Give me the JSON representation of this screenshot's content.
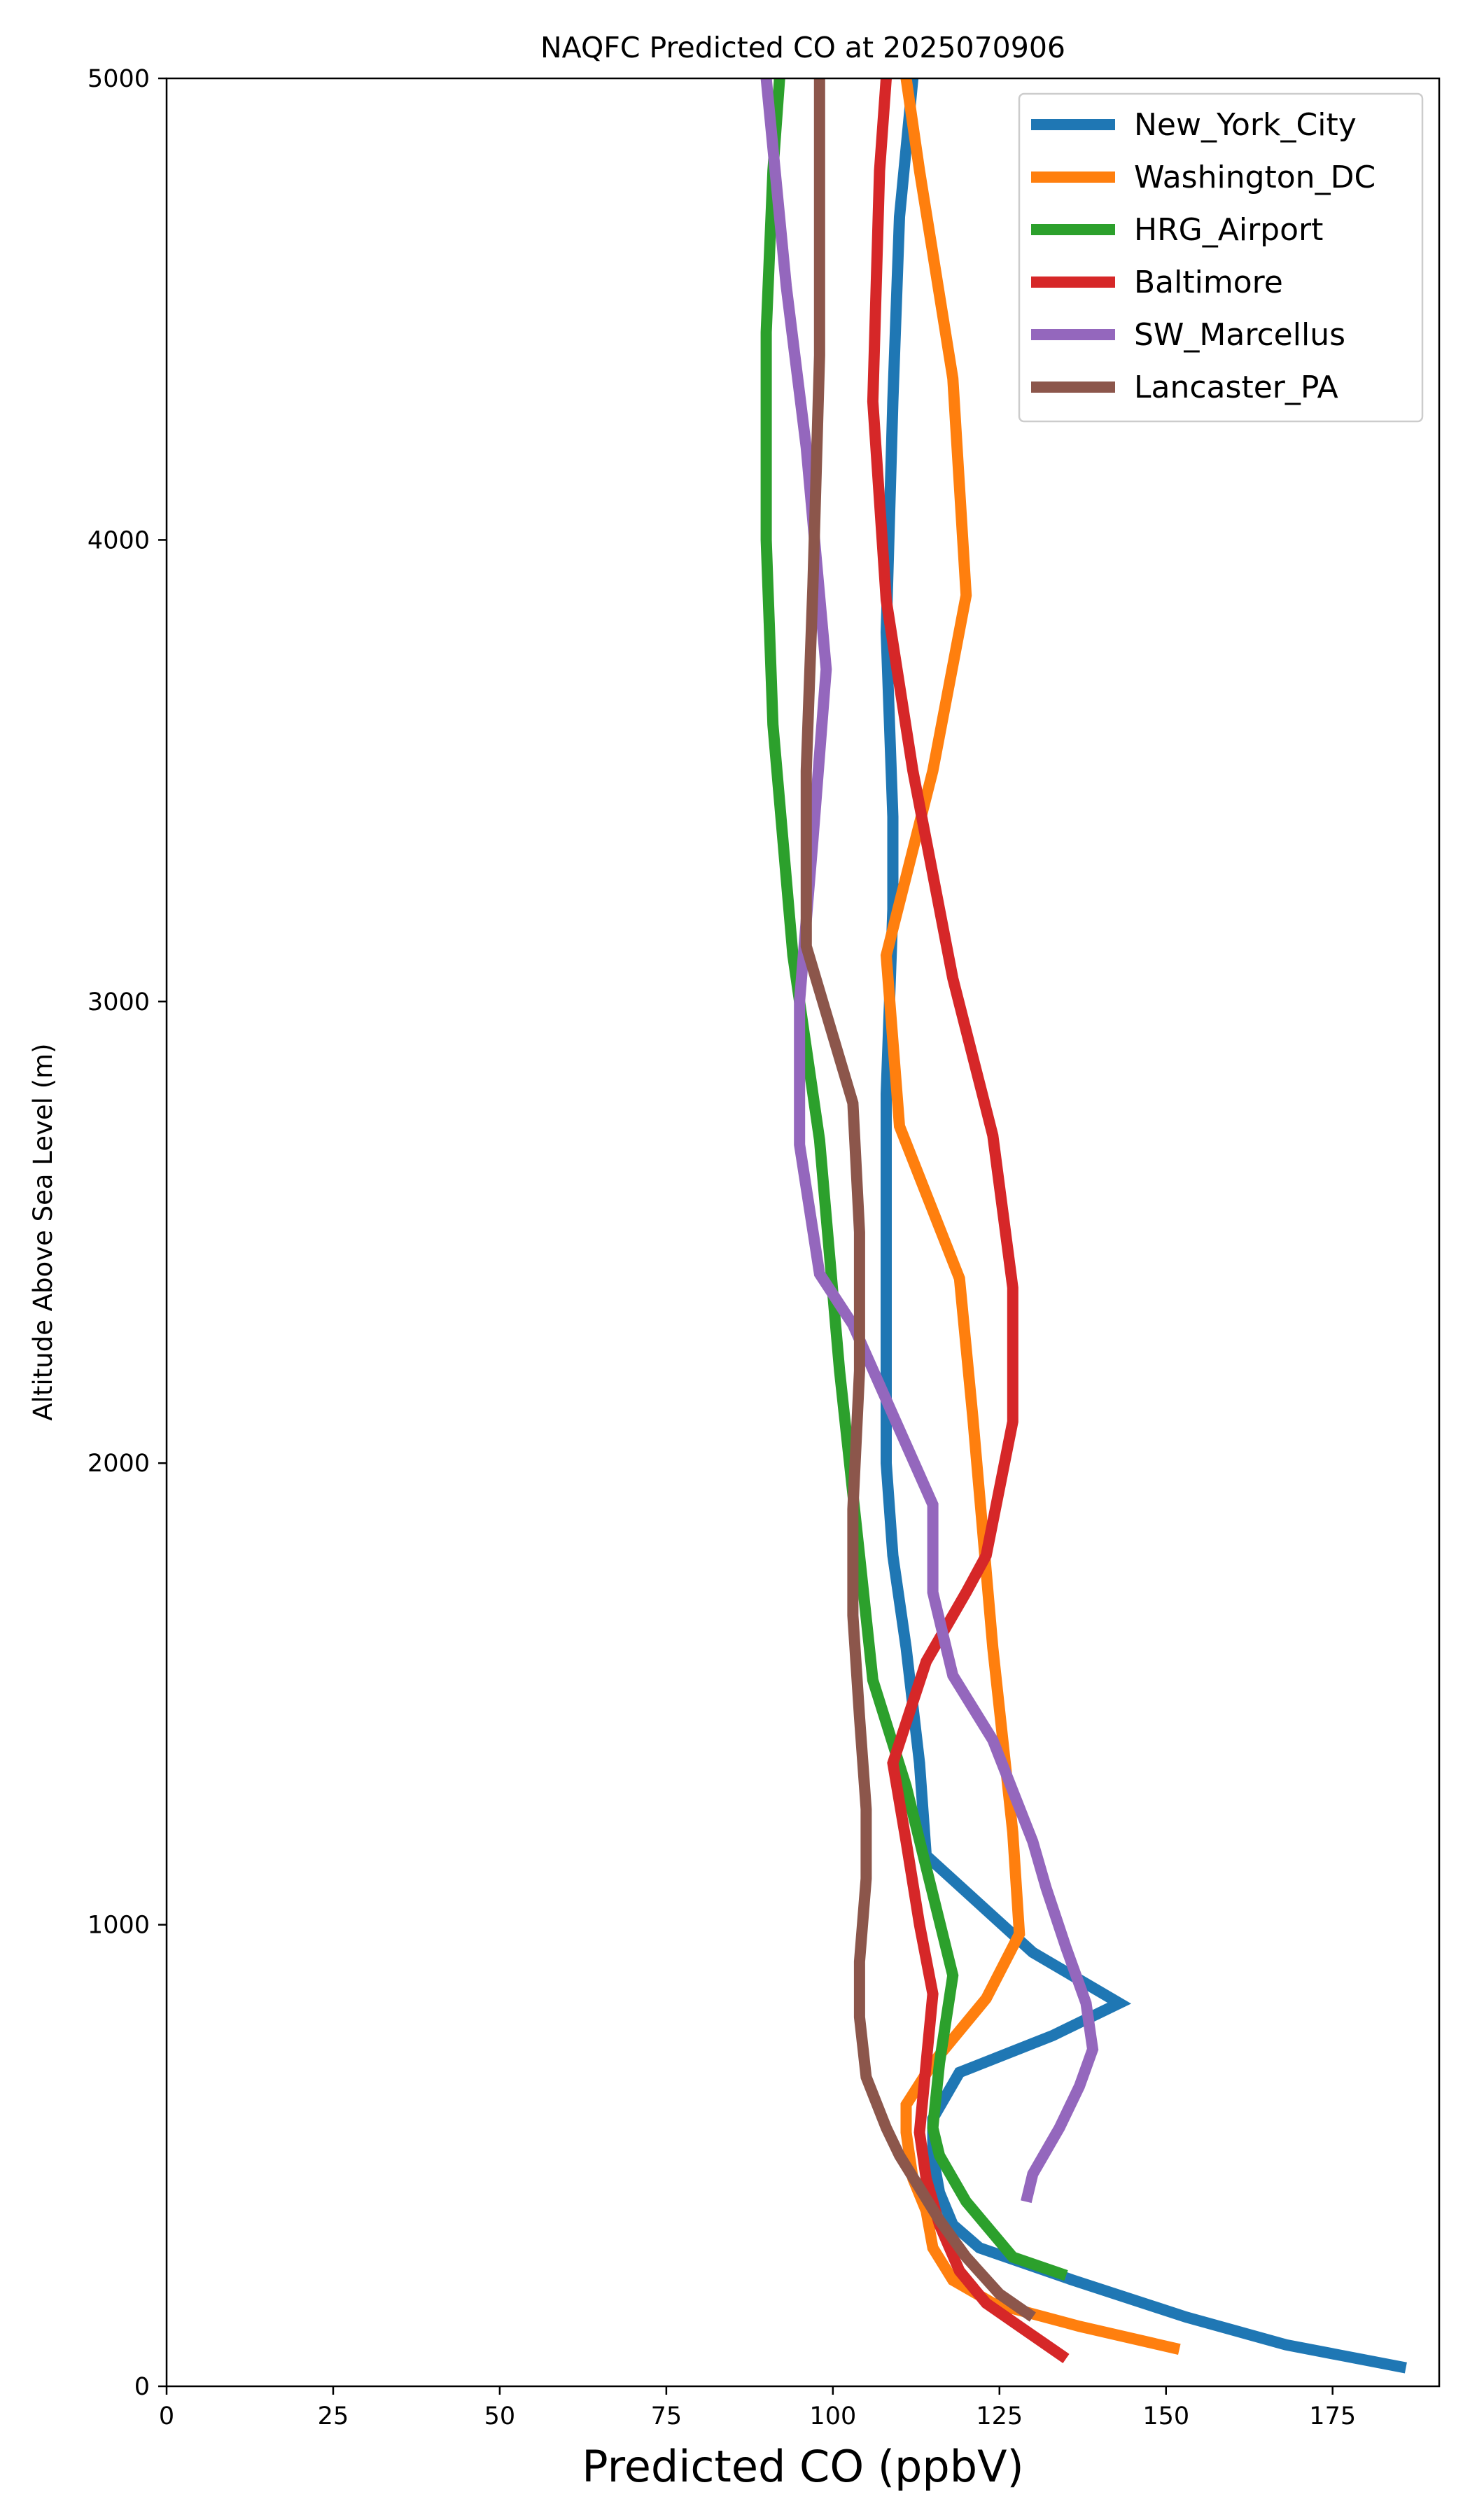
{
  "chart_data": {
    "type": "line",
    "title": "NAQFC Predicted CO at 2025070906",
    "xlabel": "Predicted CO (ppbV)",
    "ylabel": "Altitude Above Sea Level (m)",
    "xlim": [
      0,
      191
    ],
    "ylim": [
      0,
      5000
    ],
    "xticks": [
      "0",
      "25",
      "50",
      "75",
      "100",
      "125",
      "150",
      "175"
    ],
    "yticks": [
      "0",
      "1000",
      "2000",
      "3000",
      "4000",
      "5000"
    ],
    "grid": false,
    "legend_position": "top-right",
    "series": [
      {
        "name": "New_York_City",
        "color": "#1f77b4",
        "points": [
          [
            186,
            40
          ],
          [
            168,
            90
          ],
          [
            153,
            150
          ],
          [
            136,
            230
          ],
          [
            122,
            300
          ],
          [
            118,
            350
          ],
          [
            116,
            420
          ],
          [
            115,
            500
          ],
          [
            115,
            580
          ],
          [
            119,
            680
          ],
          [
            133,
            760
          ],
          [
            143,
            830
          ],
          [
            130,
            940
          ],
          [
            114,
            1150
          ],
          [
            113,
            1350
          ],
          [
            111,
            1600
          ],
          [
            109,
            1800
          ],
          [
            108,
            2000
          ],
          [
            108,
            2400
          ],
          [
            108,
            2800
          ],
          [
            109,
            3200
          ],
          [
            109,
            3400
          ],
          [
            108,
            3800
          ],
          [
            109,
            4300
          ],
          [
            110,
            4700
          ],
          [
            112,
            5000
          ]
        ]
      },
      {
        "name": "Washington_DC",
        "color": "#ff7f0e",
        "points": [
          [
            152,
            80
          ],
          [
            137,
            130
          ],
          [
            124,
            180
          ],
          [
            118,
            230
          ],
          [
            115,
            300
          ],
          [
            114,
            380
          ],
          [
            112,
            450
          ],
          [
            111,
            550
          ],
          [
            111,
            610
          ],
          [
            115,
            700
          ],
          [
            123,
            840
          ],
          [
            128,
            980
          ],
          [
            127,
            1200
          ],
          [
            124,
            1600
          ],
          [
            121,
            2100
          ],
          [
            119,
            2400
          ],
          [
            110,
            2730
          ],
          [
            108,
            3100
          ],
          [
            115,
            3500
          ],
          [
            120,
            3880
          ],
          [
            118,
            4350
          ],
          [
            113,
            4800
          ],
          [
            111,
            5000
          ]
        ]
      },
      {
        "name": "HRG_Airport",
        "color": "#2ca02c",
        "points": [
          [
            135,
            240
          ],
          [
            127,
            280
          ],
          [
            120,
            400
          ],
          [
            116,
            500
          ],
          [
            115,
            560
          ],
          [
            116,
            700
          ],
          [
            118,
            890
          ],
          [
            111,
            1300
          ],
          [
            106,
            1530
          ],
          [
            104,
            1800
          ],
          [
            101,
            2200
          ],
          [
            98,
            2700
          ],
          [
            94,
            3100
          ],
          [
            91,
            3600
          ],
          [
            90,
            4000
          ],
          [
            90,
            4450
          ],
          [
            91,
            4800
          ],
          [
            92,
            5000
          ]
        ]
      },
      {
        "name": "Baltimore",
        "color": "#d62728",
        "points": [
          [
            135,
            60
          ],
          [
            129,
            120
          ],
          [
            123,
            180
          ],
          [
            119,
            250
          ],
          [
            116,
            350
          ],
          [
            114,
            450
          ],
          [
            113,
            550
          ],
          [
            114,
            700
          ],
          [
            115,
            850
          ],
          [
            113,
            1000
          ],
          [
            111,
            1180
          ],
          [
            109,
            1350
          ],
          [
            114,
            1570
          ],
          [
            120,
            1720
          ],
          [
            123,
            1800
          ],
          [
            127,
            2090
          ],
          [
            127,
            2380
          ],
          [
            124,
            2710
          ],
          [
            118,
            3050
          ],
          [
            112,
            3500
          ],
          [
            108,
            3870
          ],
          [
            106,
            4300
          ],
          [
            107,
            4800
          ],
          [
            108,
            5000
          ]
        ]
      },
      {
        "name": "SW_Marcellus",
        "color": "#9467bd",
        "points": [
          [
            129,
            400
          ],
          [
            130,
            460
          ],
          [
            134,
            560
          ],
          [
            137,
            650
          ],
          [
            139,
            730
          ],
          [
            138,
            830
          ],
          [
            135,
            950
          ],
          [
            132,
            1080
          ],
          [
            130,
            1180
          ],
          [
            124,
            1400
          ],
          [
            118,
            1540
          ],
          [
            115,
            1720
          ],
          [
            115,
            1910
          ],
          [
            103,
            2300
          ],
          [
            98,
            2410
          ],
          [
            95,
            2690
          ],
          [
            95,
            3000
          ],
          [
            97,
            3350
          ],
          [
            99,
            3720
          ],
          [
            96,
            4200
          ],
          [
            93,
            4550
          ],
          [
            90,
            5000
          ]
        ]
      },
      {
        "name": "Lancaster_PA",
        "color": "#8c564b",
        "points": [
          [
            130,
            150
          ],
          [
            125,
            200
          ],
          [
            120,
            280
          ],
          [
            116,
            360
          ],
          [
            113,
            430
          ],
          [
            110,
            500
          ],
          [
            108,
            560
          ],
          [
            105,
            670
          ],
          [
            104,
            800
          ],
          [
            104,
            920
          ],
          [
            105,
            1100
          ],
          [
            105,
            1250
          ],
          [
            104,
            1450
          ],
          [
            103,
            1670
          ],
          [
            103,
            1900
          ],
          [
            104,
            2200
          ],
          [
            104,
            2500
          ],
          [
            103,
            2780
          ],
          [
            96,
            3120
          ],
          [
            96,
            3500
          ],
          [
            97,
            3900
          ],
          [
            98,
            4400
          ],
          [
            98,
            5000
          ]
        ]
      }
    ]
  }
}
